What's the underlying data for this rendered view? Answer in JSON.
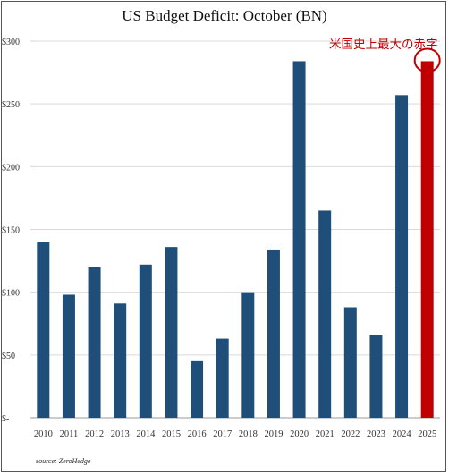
{
  "chart_data": {
    "type": "bar",
    "title": "US Budget Deficit: October  (BN)",
    "categories": [
      "2010",
      "2011",
      "2012",
      "2013",
      "2014",
      "2015",
      "2016",
      "2017",
      "2018",
      "2019",
      "2020",
      "2021",
      "2022",
      "2023",
      "2024",
      "2025"
    ],
    "values": [
      140,
      98,
      120,
      91,
      122,
      136,
      45,
      63,
      100,
      134,
      284,
      165,
      88,
      66,
      257,
      284
    ],
    "ylim": [
      0,
      300
    ],
    "yticks": [
      0,
      50,
      100,
      150,
      200,
      250,
      300
    ],
    "ytick_labels": [
      "$-",
      "$50",
      "$100",
      "$150",
      "$200",
      "$250",
      "$300"
    ],
    "grid": true,
    "bar_color": "#1f4e79",
    "highlight_color": "#c00000",
    "highlight_index": 15,
    "annotation": "米国史上最大の赤字",
    "source": "source: ZeroHedge"
  }
}
